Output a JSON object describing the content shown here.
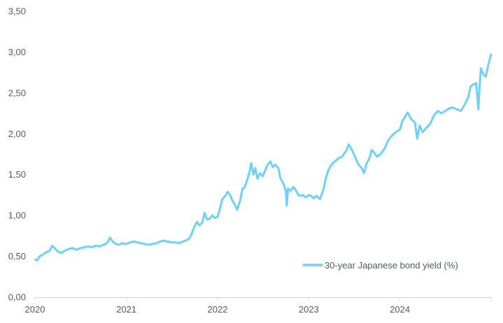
{
  "chart_data": {
    "type": "line",
    "title": "",
    "xlabel": "",
    "ylabel": "",
    "xlim": [
      "2020-01-01",
      "2024-12-31"
    ],
    "ylim": [
      0,
      3.5
    ],
    "grid": false,
    "legend_position": "bottom-right",
    "x_tick_labels": [
      "2020",
      "2021",
      "2022",
      "2023",
      "2024"
    ],
    "y_tick_labels": [
      "0,00",
      "0,50",
      "1,00",
      "1,50",
      "2,00",
      "2,50",
      "3,00",
      "3,50"
    ],
    "series": [
      {
        "name": "30-year Japanese bond yield (%)",
        "color": "#6fd0f8",
        "points": [
          [
            "2020-01-02",
            0.46
          ],
          [
            "2020-01-10",
            0.45
          ],
          [
            "2020-01-20",
            0.5
          ],
          [
            "2020-02-01",
            0.52
          ],
          [
            "2020-02-15",
            0.55
          ],
          [
            "2020-03-01",
            0.57
          ],
          [
            "2020-03-10",
            0.63
          ],
          [
            "2020-03-20",
            0.6
          ],
          [
            "2020-04-01",
            0.56
          ],
          [
            "2020-04-15",
            0.54
          ],
          [
            "2020-05-01",
            0.57
          ],
          [
            "2020-05-15",
            0.59
          ],
          [
            "2020-06-01",
            0.6
          ],
          [
            "2020-06-15",
            0.58
          ],
          [
            "2020-07-01",
            0.6
          ],
          [
            "2020-07-15",
            0.61
          ],
          [
            "2020-08-01",
            0.62
          ],
          [
            "2020-08-15",
            0.61
          ],
          [
            "2020-09-01",
            0.63
          ],
          [
            "2020-09-15",
            0.62
          ],
          [
            "2020-10-01",
            0.64
          ],
          [
            "2020-10-10",
            0.65
          ],
          [
            "2020-10-20",
            0.68
          ],
          [
            "2020-10-27",
            0.73
          ],
          [
            "2020-11-05",
            0.69
          ],
          [
            "2020-11-15",
            0.66
          ],
          [
            "2020-12-01",
            0.64
          ],
          [
            "2020-12-15",
            0.66
          ],
          [
            "2021-01-01",
            0.65
          ],
          [
            "2021-01-15",
            0.67
          ],
          [
            "2021-02-01",
            0.68
          ],
          [
            "2021-02-15",
            0.67
          ],
          [
            "2021-03-01",
            0.66
          ],
          [
            "2021-03-15",
            0.65
          ],
          [
            "2021-04-01",
            0.64
          ],
          [
            "2021-04-15",
            0.65
          ],
          [
            "2021-05-01",
            0.66
          ],
          [
            "2021-05-15",
            0.68
          ],
          [
            "2021-06-01",
            0.69
          ],
          [
            "2021-06-15",
            0.68
          ],
          [
            "2021-07-01",
            0.67
          ],
          [
            "2021-07-15",
            0.67
          ],
          [
            "2021-08-01",
            0.66
          ],
          [
            "2021-08-15",
            0.68
          ],
          [
            "2021-09-01",
            0.7
          ],
          [
            "2021-09-10",
            0.72
          ],
          [
            "2021-09-20",
            0.78
          ],
          [
            "2021-10-01",
            0.87
          ],
          [
            "2021-10-10",
            0.92
          ],
          [
            "2021-10-20",
            0.88
          ],
          [
            "2021-11-01",
            0.91
          ],
          [
            "2021-11-10",
            1.03
          ],
          [
            "2021-11-20",
            0.95
          ],
          [
            "2021-12-01",
            0.96
          ],
          [
            "2021-12-10",
            1.0
          ],
          [
            "2021-12-20",
            0.97
          ],
          [
            "2022-01-01",
            0.98
          ],
          [
            "2022-01-10",
            1.08
          ],
          [
            "2022-01-20",
            1.2
          ],
          [
            "2022-02-01",
            1.24
          ],
          [
            "2022-02-10",
            1.29
          ],
          [
            "2022-02-20",
            1.25
          ],
          [
            "2022-03-01",
            1.18
          ],
          [
            "2022-03-10",
            1.14
          ],
          [
            "2022-03-20",
            1.07
          ],
          [
            "2022-04-01",
            1.18
          ],
          [
            "2022-04-10",
            1.32
          ],
          [
            "2022-04-20",
            1.35
          ],
          [
            "2022-05-01",
            1.45
          ],
          [
            "2022-05-10",
            1.55
          ],
          [
            "2022-05-15",
            1.64
          ],
          [
            "2022-05-25",
            1.5
          ],
          [
            "2022-06-01",
            1.58
          ],
          [
            "2022-06-10",
            1.45
          ],
          [
            "2022-06-20",
            1.52
          ],
          [
            "2022-07-01",
            1.48
          ],
          [
            "2022-07-10",
            1.55
          ],
          [
            "2022-07-20",
            1.62
          ],
          [
            "2022-08-01",
            1.66
          ],
          [
            "2022-08-10",
            1.59
          ],
          [
            "2022-08-20",
            1.62
          ],
          [
            "2022-09-01",
            1.58
          ],
          [
            "2022-09-10",
            1.45
          ],
          [
            "2022-09-20",
            1.4
          ],
          [
            "2022-10-01",
            1.3
          ],
          [
            "2022-10-05",
            1.12
          ],
          [
            "2022-10-10",
            1.33
          ],
          [
            "2022-10-20",
            1.3
          ],
          [
            "2022-11-01",
            1.35
          ],
          [
            "2022-11-10",
            1.31
          ],
          [
            "2022-11-20",
            1.25
          ],
          [
            "2022-12-01",
            1.24
          ],
          [
            "2022-12-10",
            1.25
          ],
          [
            "2022-12-20",
            1.22
          ],
          [
            "2023-01-01",
            1.25
          ],
          [
            "2023-01-10",
            1.24
          ],
          [
            "2023-01-20",
            1.21
          ],
          [
            "2023-02-01",
            1.24
          ],
          [
            "2023-02-15",
            1.2
          ],
          [
            "2023-03-01",
            1.32
          ],
          [
            "2023-03-10",
            1.45
          ],
          [
            "2023-03-20",
            1.55
          ],
          [
            "2023-04-01",
            1.62
          ],
          [
            "2023-04-15",
            1.66
          ],
          [
            "2023-05-01",
            1.7
          ],
          [
            "2023-05-15",
            1.72
          ],
          [
            "2023-06-01",
            1.8
          ],
          [
            "2023-06-10",
            1.87
          ],
          [
            "2023-06-20",
            1.82
          ],
          [
            "2023-07-01",
            1.75
          ],
          [
            "2023-07-10",
            1.68
          ],
          [
            "2023-07-20",
            1.62
          ],
          [
            "2023-08-01",
            1.58
          ],
          [
            "2023-08-10",
            1.52
          ],
          [
            "2023-08-20",
            1.63
          ],
          [
            "2023-09-01",
            1.7
          ],
          [
            "2023-09-10",
            1.8
          ],
          [
            "2023-09-20",
            1.77
          ],
          [
            "2023-10-01",
            1.72
          ],
          [
            "2023-10-15",
            1.75
          ],
          [
            "2023-11-01",
            1.82
          ],
          [
            "2023-11-15",
            1.92
          ],
          [
            "2023-12-01",
            1.98
          ],
          [
            "2023-12-15",
            2.02
          ],
          [
            "2024-01-01",
            2.05
          ],
          [
            "2024-01-10",
            2.15
          ],
          [
            "2024-01-20",
            2.2
          ],
          [
            "2024-02-01",
            2.26
          ],
          [
            "2024-02-15",
            2.18
          ],
          [
            "2024-03-01",
            2.14
          ],
          [
            "2024-03-10",
            1.94
          ],
          [
            "2024-03-20",
            2.1
          ],
          [
            "2024-04-01",
            2.02
          ],
          [
            "2024-04-15",
            2.07
          ],
          [
            "2024-05-01",
            2.12
          ],
          [
            "2024-05-15",
            2.22
          ],
          [
            "2024-06-01",
            2.28
          ],
          [
            "2024-06-15",
            2.25
          ],
          [
            "2024-07-01",
            2.28
          ],
          [
            "2024-07-15",
            2.31
          ],
          [
            "2024-08-01",
            2.32
          ],
          [
            "2024-08-15",
            2.3
          ],
          [
            "2024-09-01",
            2.28
          ],
          [
            "2024-09-15",
            2.35
          ],
          [
            "2024-10-01",
            2.45
          ],
          [
            "2024-10-10",
            2.58
          ],
          [
            "2024-10-20",
            2.6
          ],
          [
            "2024-11-01",
            2.62
          ],
          [
            "2024-11-10",
            2.3
          ],
          [
            "2024-11-15",
            2.58
          ],
          [
            "2024-11-20",
            2.8
          ],
          [
            "2024-12-01",
            2.72
          ],
          [
            "2024-12-10",
            2.7
          ],
          [
            "2024-12-20",
            2.85
          ],
          [
            "2024-12-31",
            2.97
          ]
        ]
      }
    ]
  }
}
